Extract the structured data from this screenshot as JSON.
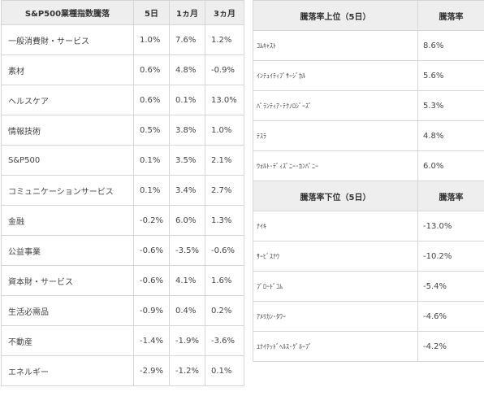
{
  "sector_table": {
    "headers": [
      "S&P500業種指数騰落",
      "5日",
      "1ヵ月",
      "3ヵ月"
    ],
    "rows": [
      [
        "一般消費財・サービス",
        "1.0%",
        "7.6%",
        "1.2%"
      ],
      [
        "素材",
        "0.6%",
        "4.8%",
        "-0.9%"
      ],
      [
        "ヘルスケア",
        "0.6%",
        "0.1%",
        "13.0%"
      ],
      [
        "情報技術",
        "0.5%",
        "3.8%",
        "1.0%"
      ],
      [
        "S&P500",
        "0.1%",
        "3.5%",
        "2.1%"
      ],
      [
        "コミュニケーションサービス",
        "0.1%",
        "3.4%",
        "2.7%"
      ],
      [
        "金融",
        "-0.2%",
        "6.0%",
        "1.3%"
      ],
      [
        "公益事業",
        "-0.6%",
        "-3.5%",
        "-0.6%"
      ],
      [
        "資本財・サービス",
        "-0.6%",
        "4.1%",
        "1.6%"
      ],
      [
        "生活必需品",
        "-0.9%",
        "0.4%",
        "0.2%"
      ],
      [
        "不動産",
        "-1.4%",
        "-1.9%",
        "-3.6%"
      ],
      [
        "エネルギー",
        "-2.9%",
        "-1.2%",
        "0.1%"
      ]
    ]
  },
  "gainers_table": {
    "headers": [
      "騰落率上位（5日）",
      "騰落率"
    ],
    "rows": [
      [
        "ｺﾑｷｬｽﾄ",
        "8.6%"
      ],
      [
        "ｲﾝﾃｭｲﾃｨﾌﾞｻｰｼﾞｶﾙ",
        "5.6%"
      ],
      [
        "ﾊﾟﾗﾝﾃｨｱ･ﾃｸﾉﾛｼﾞｰｽﾞ",
        "5.3%"
      ],
      [
        "ﾃｽﾗ",
        "4.8%"
      ],
      [
        "ｳｫﾙﾄ･ﾃﾞｨｽﾞﾆｰ･ｶﾝﾊﾟﾆｰ",
        "6.0%"
      ]
    ]
  },
  "losers_table": {
    "headers": [
      "騰落率下位（5日）",
      "騰落率"
    ],
    "rows": [
      [
        "ﾅｲｷ",
        "-13.0%"
      ],
      [
        "ｻｰﾋﾞｽﾅｳ",
        "-10.2%"
      ],
      [
        "ﾌﾞﾛｰﾄﾞｺﾑ",
        "-5.4%"
      ],
      [
        "ｱﾒﾘｶﾝ･ﾀﾜｰ",
        "-4.6%"
      ],
      [
        "ﾕﾅｲﾃｯﾄﾞﾍﾙｽ･ｸﾞﾙｰﾌﾟ",
        "-4.2%"
      ]
    ]
  }
}
